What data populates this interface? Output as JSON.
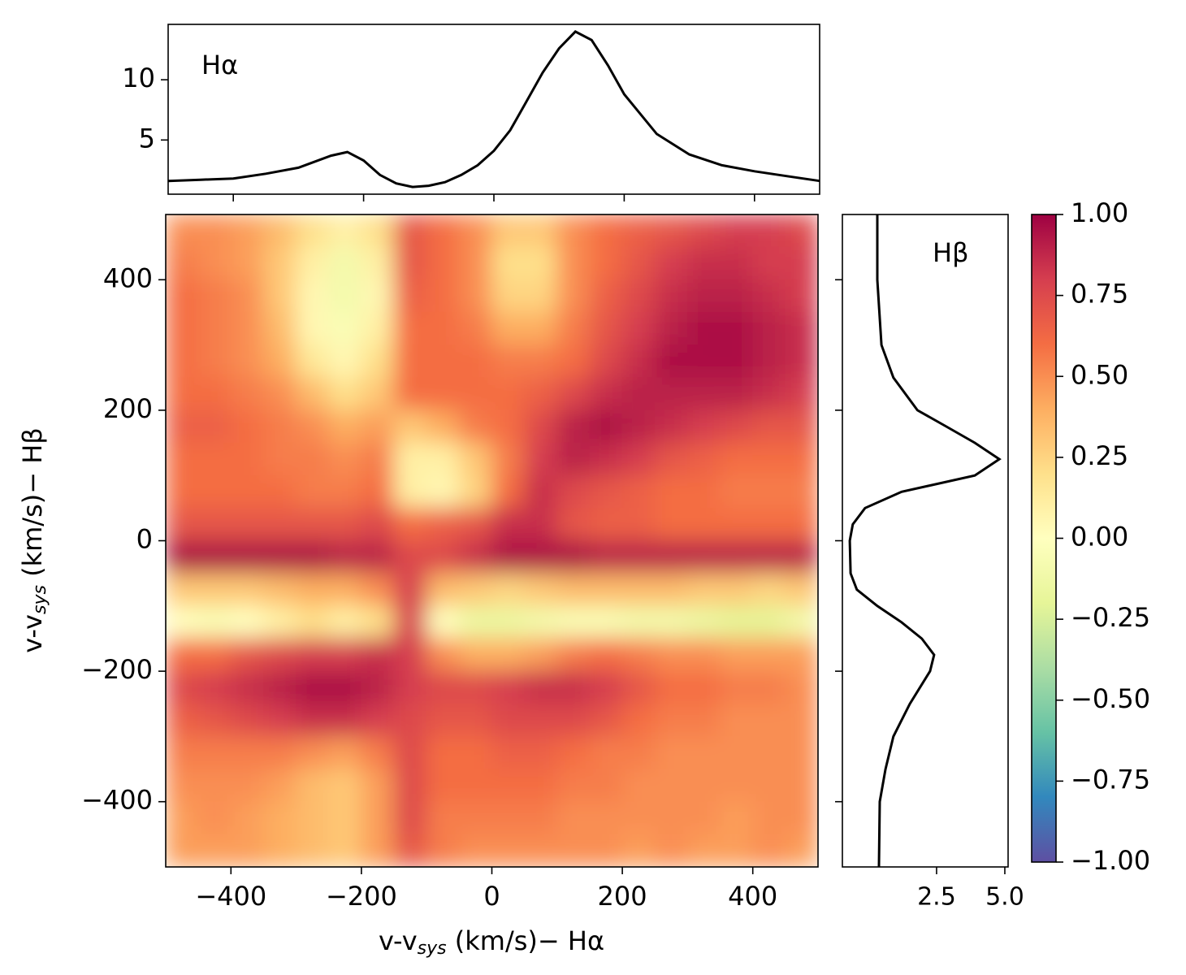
{
  "chart_data": [
    {
      "type": "heatmap",
      "x": [
        -475,
        -425,
        -375,
        -325,
        -275,
        -225,
        -175,
        -125,
        -75,
        -25,
        25,
        75,
        125,
        175,
        225,
        275,
        325,
        375,
        425,
        475
      ],
      "y": [
        475,
        425,
        375,
        325,
        275,
        225,
        175,
        125,
        75,
        25,
        -25,
        -75,
        -125,
        -175,
        -225,
        -275,
        -325,
        -375,
        -425,
        -475
      ],
      "values": [
        [
          0.5,
          0.5,
          0.45,
          0.35,
          0.2,
          0.1,
          0.2,
          0.7,
          0.6,
          0.5,
          0.3,
          0.3,
          0.5,
          0.6,
          0.65,
          0.7,
          0.75,
          0.8,
          0.8,
          0.75
        ],
        [
          0.55,
          0.5,
          0.45,
          0.3,
          0.1,
          -0.1,
          0.1,
          0.7,
          0.6,
          0.5,
          0.2,
          0.2,
          0.5,
          0.6,
          0.7,
          0.8,
          0.85,
          0.85,
          0.8,
          0.8
        ],
        [
          0.6,
          0.55,
          0.5,
          0.3,
          0.05,
          -0.1,
          0.05,
          0.65,
          0.6,
          0.5,
          0.25,
          0.25,
          0.5,
          0.65,
          0.75,
          0.85,
          0.9,
          0.9,
          0.85,
          0.8
        ],
        [
          0.6,
          0.55,
          0.5,
          0.35,
          0.05,
          -0.05,
          0.1,
          0.6,
          0.6,
          0.55,
          0.4,
          0.4,
          0.55,
          0.7,
          0.8,
          0.9,
          0.95,
          0.95,
          0.9,
          0.85
        ],
        [
          0.6,
          0.55,
          0.5,
          0.4,
          0.15,
          0.05,
          0.2,
          0.6,
          0.6,
          0.6,
          0.55,
          0.55,
          0.6,
          0.75,
          0.85,
          0.95,
          0.95,
          0.95,
          0.9,
          0.85
        ],
        [
          0.6,
          0.6,
          0.55,
          0.5,
          0.35,
          0.2,
          0.3,
          0.6,
          0.6,
          0.6,
          0.6,
          0.65,
          0.75,
          0.85,
          0.9,
          0.9,
          0.9,
          0.9,
          0.85,
          0.8
        ],
        [
          0.65,
          0.65,
          0.6,
          0.55,
          0.5,
          0.4,
          0.45,
          0.3,
          0.4,
          0.55,
          0.6,
          0.75,
          0.9,
          0.95,
          0.9,
          0.85,
          0.8,
          0.75,
          0.7,
          0.7
        ],
        [
          0.6,
          0.6,
          0.6,
          0.55,
          0.55,
          0.5,
          0.55,
          0.1,
          0.1,
          0.3,
          0.55,
          0.8,
          0.9,
          0.85,
          0.8,
          0.7,
          0.65,
          0.6,
          0.6,
          0.6
        ],
        [
          0.6,
          0.6,
          0.6,
          0.6,
          0.55,
          0.55,
          0.6,
          0.1,
          0.05,
          0.25,
          0.6,
          0.85,
          0.75,
          0.7,
          0.65,
          0.6,
          0.6,
          0.55,
          0.55,
          0.55
        ],
        [
          0.7,
          0.7,
          0.7,
          0.7,
          0.7,
          0.7,
          0.75,
          0.6,
          0.65,
          0.7,
          0.85,
          0.85,
          0.7,
          0.65,
          0.65,
          0.6,
          0.6,
          0.6,
          0.6,
          0.6
        ],
        [
          0.95,
          0.95,
          0.95,
          0.95,
          0.95,
          0.9,
          0.9,
          0.75,
          0.75,
          0.85,
          0.95,
          0.95,
          0.95,
          0.9,
          0.9,
          0.9,
          0.9,
          0.9,
          0.9,
          0.9
        ],
        [
          0.3,
          0.3,
          0.3,
          0.35,
          0.4,
          0.4,
          0.5,
          0.8,
          0.35,
          0.3,
          0.25,
          0.3,
          0.35,
          0.35,
          0.35,
          0.35,
          0.3,
          0.3,
          0.25,
          0.3
        ],
        [
          0.0,
          -0.05,
          0.0,
          0.1,
          0.2,
          0.1,
          0.2,
          0.8,
          0.0,
          -0.15,
          -0.15,
          -0.1,
          -0.05,
          -0.05,
          -0.1,
          -0.1,
          -0.15,
          -0.2,
          -0.2,
          -0.1
        ],
        [
          0.6,
          0.6,
          0.7,
          0.75,
          0.8,
          0.8,
          0.85,
          0.8,
          0.5,
          0.4,
          0.4,
          0.45,
          0.55,
          0.6,
          0.55,
          0.5,
          0.5,
          0.45,
          0.45,
          0.45
        ],
        [
          0.75,
          0.8,
          0.85,
          0.9,
          0.95,
          0.95,
          0.9,
          0.8,
          0.75,
          0.75,
          0.8,
          0.85,
          0.85,
          0.8,
          0.7,
          0.6,
          0.6,
          0.55,
          0.55,
          0.5
        ],
        [
          0.65,
          0.7,
          0.75,
          0.8,
          0.85,
          0.85,
          0.8,
          0.75,
          0.7,
          0.7,
          0.75,
          0.75,
          0.75,
          0.7,
          0.6,
          0.55,
          0.55,
          0.5,
          0.5,
          0.5
        ],
        [
          0.55,
          0.55,
          0.55,
          0.55,
          0.5,
          0.45,
          0.55,
          0.75,
          0.6,
          0.6,
          0.65,
          0.65,
          0.6,
          0.55,
          0.55,
          0.5,
          0.5,
          0.5,
          0.5,
          0.5
        ],
        [
          0.5,
          0.5,
          0.5,
          0.45,
          0.35,
          0.3,
          0.45,
          0.75,
          0.6,
          0.6,
          0.6,
          0.6,
          0.55,
          0.55,
          0.5,
          0.5,
          0.5,
          0.5,
          0.5,
          0.5
        ],
        [
          0.45,
          0.5,
          0.45,
          0.4,
          0.35,
          0.3,
          0.45,
          0.75,
          0.55,
          0.55,
          0.55,
          0.55,
          0.5,
          0.5,
          0.5,
          0.5,
          0.5,
          0.45,
          0.5,
          0.5
        ],
        [
          0.45,
          0.45,
          0.45,
          0.4,
          0.35,
          0.3,
          0.45,
          0.7,
          0.55,
          0.5,
          0.5,
          0.5,
          0.5,
          0.5,
          0.45,
          0.5,
          0.45,
          0.45,
          0.5,
          0.45
        ]
      ],
      "xlim": [
        -500,
        500
      ],
      "ylim": [
        -500,
        500
      ],
      "xticks": [
        {
          "value": -400,
          "label": "−400"
        },
        {
          "value": -200,
          "label": "−200"
        },
        0,
        200,
        400
      ],
      "yticks": [
        400,
        200,
        0,
        {
          "value": -200,
          "label": "−200"
        },
        {
          "value": -400,
          "label": "−400"
        }
      ],
      "xlabel": {
        "main": "v-v",
        "sub": "sys",
        "rest": " (km/s)− Hα"
      },
      "ylabel": {
        "main": "v-v",
        "sub": "sys",
        "rest": " (km/s)− Hβ"
      },
      "colormap": "Spectral_r",
      "clim": [
        -1,
        1
      ],
      "cticks": [
        {
          "value": 1,
          "label": "1.00"
        },
        {
          "value": 0.75,
          "label": "0.75"
        },
        {
          "value": 0.5,
          "label": "0.50"
        },
        {
          "value": 0.25,
          "label": "0.25"
        },
        {
          "value": 0,
          "label": "0.00"
        },
        {
          "value": -0.25,
          "label": "−0.25"
        },
        {
          "value": -0.5,
          "label": "−0.50"
        },
        {
          "value": -0.75,
          "label": "−0.75"
        },
        {
          "value": -1,
          "label": "−1.00"
        }
      ]
    },
    {
      "type": "line",
      "annotation": "Hα",
      "color": "#000000",
      "x": [
        -500,
        -450,
        -400,
        -350,
        -300,
        -250,
        -225,
        -200,
        -175,
        -150,
        -125,
        -100,
        -75,
        -50,
        -25,
        0,
        25,
        50,
        75,
        100,
        125,
        150,
        175,
        200,
        250,
        300,
        350,
        400,
        450,
        500
      ],
      "values": [
        1.6,
        1.7,
        1.8,
        2.2,
        2.7,
        3.7,
        4.0,
        3.3,
        2.1,
        1.4,
        1.1,
        1.2,
        1.5,
        2.1,
        2.9,
        4.1,
        5.8,
        8.2,
        10.6,
        12.6,
        14.0,
        13.3,
        11.2,
        8.8,
        5.5,
        3.8,
        2.9,
        2.4,
        2.0,
        1.6
      ],
      "xlim": [
        -500,
        500
      ],
      "ylim": [
        0.5,
        14.6
      ],
      "yticks": [
        5,
        10
      ]
    },
    {
      "type": "line",
      "orientation": "horizontal",
      "annotation": "Hβ",
      "color": "#000000",
      "y": [
        500,
        400,
        300,
        250,
        200,
        175,
        150,
        125,
        100,
        75,
        50,
        25,
        0,
        -50,
        -75,
        -100,
        -125,
        -150,
        -175,
        -200,
        -250,
        -300,
        -350,
        -400,
        -500
      ],
      "values": [
        0.33,
        0.33,
        0.48,
        0.92,
        1.8,
        2.86,
        3.9,
        4.8,
        3.9,
        1.22,
        -0.12,
        -0.57,
        -0.68,
        -0.65,
        -0.42,
        0.33,
        1.22,
        1.96,
        2.41,
        2.26,
        1.52,
        0.92,
        0.63,
        0.42,
        0.39
      ],
      "xlim": [
        -0.95,
        5.12
      ],
      "ylim": [
        -500,
        500
      ],
      "xticks": [
        2.5,
        {
          "value": 5,
          "label": "5.0"
        }
      ]
    }
  ]
}
